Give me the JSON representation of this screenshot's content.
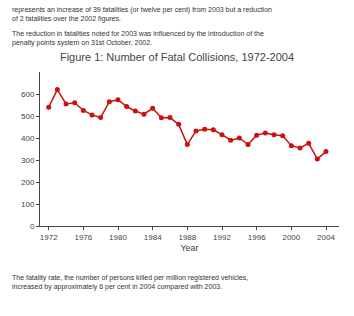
{
  "chart_data": {
    "type": "line",
    "title": "Figure 1: Number of Fatal Collisions, 1972-2004",
    "xlabel": "Year",
    "x": [
      1972,
      1973,
      1974,
      1975,
      1976,
      1977,
      1978,
      1979,
      1980,
      1981,
      1982,
      1983,
      1984,
      1985,
      1986,
      1987,
      1988,
      1989,
      1990,
      1991,
      1992,
      1993,
      1994,
      1995,
      1996,
      1997,
      1998,
      1999,
      2000,
      2001,
      2002,
      2003,
      2004
    ],
    "values": [
      540,
      620,
      555,
      560,
      525,
      505,
      493,
      565,
      574,
      543,
      523,
      508,
      535,
      492,
      493,
      462,
      370,
      432,
      440,
      437,
      415,
      390,
      400,
      370,
      413,
      423,
      415,
      410,
      365,
      355,
      376,
      304,
      339
    ],
    "color": "#cc1111",
    "marker": "circle",
    "line_style": "solid",
    "xlim": [
      1971,
      2005.5
    ],
    "ylim": [
      0,
      700
    ],
    "xticks": [
      1972,
      1976,
      1980,
      1984,
      1988,
      1992,
      1996,
      2000,
      2004
    ],
    "yticks": [
      0,
      100,
      200,
      300,
      400,
      500,
      600
    ],
    "grid": false,
    "annotations": [
      "represents an increase of 39 fatalities (or twelve per cent) from 2003 but a reduction\nof 2 fatalities over the 2002 figures.",
      "The reduction in fatalities noted for 2003 was influenced by the introduction of the\npenalty points system on 31st October, 2002.",
      "The fatality rate, the number of persons killed per million registered vehicles,\nincreased by approximately 6 per cent in 2004 compared with 2003."
    ]
  }
}
